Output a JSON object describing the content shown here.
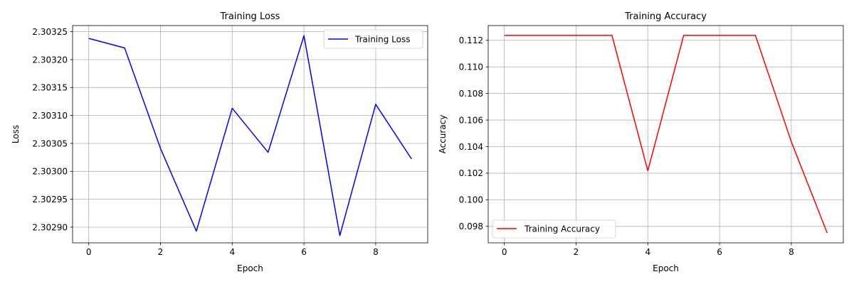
{
  "chart_data": [
    {
      "type": "line",
      "title": "Training Loss",
      "xlabel": "Epoch",
      "ylabel": "Loss",
      "x": [
        0,
        1,
        2,
        3,
        4,
        5,
        6,
        7,
        8,
        9
      ],
      "series": [
        {
          "name": "Training Loss",
          "color": "#0000ff",
          "values": [
            2.303238,
            2.303221,
            2.303041,
            2.302893,
            2.303113,
            2.303034,
            2.303243,
            2.302885,
            2.30312,
            2.303022
          ]
        }
      ],
      "xlim": [
        -0.45,
        9.45
      ],
      "ylim": [
        2.302872,
        2.303261
      ],
      "xticks": [
        0,
        2,
        4,
        6,
        8
      ],
      "xtick_labels": [
        "0",
        "2",
        "4",
        "6",
        "8"
      ],
      "yticks": [
        2.3029,
        2.30295,
        2.303,
        2.30305,
        2.3031,
        2.30315,
        2.3032,
        2.30325
      ],
      "ytick_labels": [
        "2.30290",
        "2.30295",
        "2.30300",
        "2.30305",
        "2.30310",
        "2.30315",
        "2.30320",
        "2.30325"
      ],
      "grid": true,
      "legend_position": "top-right"
    },
    {
      "type": "line",
      "title": "Training Accuracy",
      "xlabel": "Epoch",
      "ylabel": "Accuracy",
      "x": [
        0,
        1,
        2,
        3,
        4,
        5,
        6,
        7,
        8,
        9
      ],
      "series": [
        {
          "name": "Training Accuracy",
          "color": "#ff0000",
          "values": [
            0.11237,
            0.11237,
            0.11237,
            0.11237,
            0.10218,
            0.11237,
            0.11237,
            0.11237,
            0.10437,
            0.0975
          ]
        }
      ],
      "xlim": [
        -0.45,
        9.45
      ],
      "ylim": [
        0.09676,
        0.11311
      ],
      "xticks": [
        0,
        2,
        4,
        6,
        8
      ],
      "xtick_labels": [
        "0",
        "2",
        "4",
        "6",
        "8"
      ],
      "yticks": [
        0.098,
        0.1,
        0.102,
        0.104,
        0.106,
        0.108,
        0.11,
        0.112
      ],
      "ytick_labels": [
        "0.098",
        "0.100",
        "0.102",
        "0.104",
        "0.106",
        "0.108",
        "0.110",
        "0.112"
      ],
      "grid": true,
      "legend_position": "bottom-left"
    }
  ]
}
